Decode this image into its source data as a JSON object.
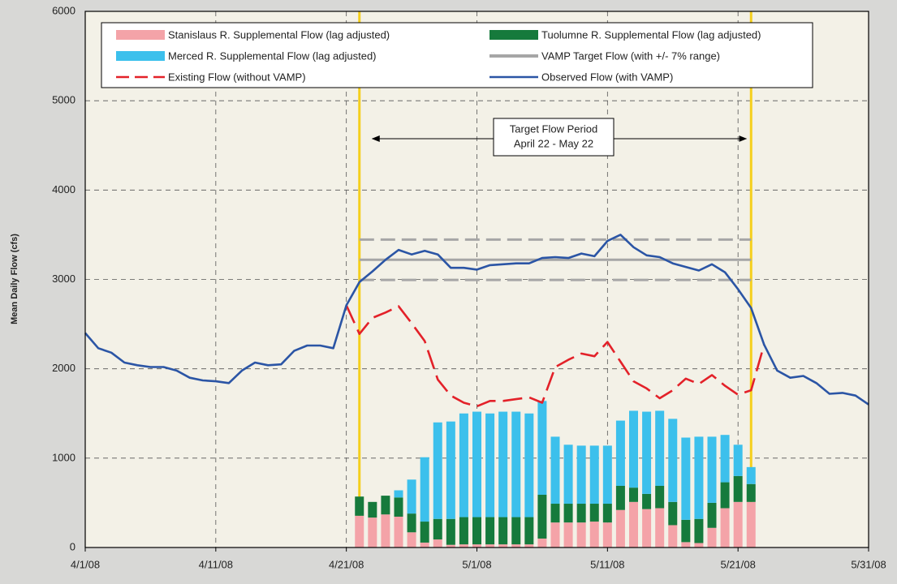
{
  "chart_data": {
    "type": "combo",
    "y_label": "Mean Daily Flow (cfs)",
    "x": [
      "2008-04-01",
      "2008-04-02",
      "2008-04-03",
      "2008-04-04",
      "2008-04-05",
      "2008-04-06",
      "2008-04-07",
      "2008-04-08",
      "2008-04-09",
      "2008-04-10",
      "2008-04-11",
      "2008-04-12",
      "2008-04-13",
      "2008-04-14",
      "2008-04-15",
      "2008-04-16",
      "2008-04-17",
      "2008-04-18",
      "2008-04-19",
      "2008-04-20",
      "2008-04-21",
      "2008-04-22",
      "2008-04-23",
      "2008-04-24",
      "2008-04-25",
      "2008-04-26",
      "2008-04-27",
      "2008-04-28",
      "2008-04-29",
      "2008-04-30",
      "2008-05-01",
      "2008-05-02",
      "2008-05-03",
      "2008-05-04",
      "2008-05-05",
      "2008-05-06",
      "2008-05-07",
      "2008-05-08",
      "2008-05-09",
      "2008-05-10",
      "2008-05-11",
      "2008-05-12",
      "2008-05-13",
      "2008-05-14",
      "2008-05-15",
      "2008-05-16",
      "2008-05-17",
      "2008-05-18",
      "2008-05-19",
      "2008-05-20",
      "2008-05-21",
      "2008-05-22",
      "2008-05-23",
      "2008-05-24",
      "2008-05-25",
      "2008-05-26",
      "2008-05-27",
      "2008-05-28",
      "2008-05-29",
      "2008-05-30",
      "2008-05-31"
    ],
    "xlim": [
      "2008-04-01",
      "2008-05-31"
    ],
    "xticks": [
      {
        "value": "2008-04-01",
        "label": "4/1/08"
      },
      {
        "value": "2008-04-11",
        "label": "4/11/08"
      },
      {
        "value": "2008-04-21",
        "label": "4/21/08"
      },
      {
        "value": "2008-05-01",
        "label": "5/1/08"
      },
      {
        "value": "2008-05-11",
        "label": "5/11/08"
      },
      {
        "value": "2008-05-21",
        "label": "5/21/08"
      },
      {
        "value": "2008-05-31",
        "label": "5/31/08"
      }
    ],
    "ylim": [
      0,
      6000
    ],
    "yticks": [
      0,
      1000,
      2000,
      3000,
      4000,
      5000,
      6000
    ],
    "grid": true,
    "series": [
      {
        "name": "Stanislaus R. Supplemental Flow (lag adjusted)",
        "kind": "bar",
        "color": "#f4a3a8",
        "values": [
          null,
          null,
          null,
          null,
          null,
          null,
          null,
          null,
          null,
          null,
          null,
          null,
          null,
          null,
          null,
          null,
          null,
          null,
          null,
          null,
          null,
          355,
          335,
          370,
          345,
          170,
          55,
          90,
          30,
          35,
          35,
          35,
          35,
          35,
          35,
          100,
          280,
          280,
          280,
          290,
          280,
          420,
          510,
          430,
          440,
          250,
          60,
          50,
          220,
          440,
          510,
          510,
          null,
          null,
          null,
          null,
          null,
          null,
          null,
          null,
          null
        ]
      },
      {
        "name": "Tuolumne R. Supplemental Flow (lag adjusted)",
        "kind": "bar",
        "color": "#167a3c",
        "values": [
          null,
          null,
          null,
          null,
          null,
          null,
          null,
          null,
          null,
          null,
          null,
          null,
          null,
          null,
          null,
          null,
          null,
          null,
          null,
          null,
          null,
          215,
          175,
          210,
          215,
          210,
          235,
          230,
          290,
          305,
          305,
          305,
          305,
          305,
          305,
          490,
          210,
          210,
          210,
          200,
          210,
          270,
          160,
          170,
          250,
          260,
          250,
          270,
          280,
          290,
          290,
          200,
          null,
          null,
          null,
          null,
          null,
          null,
          null,
          null,
          null
        ]
      },
      {
        "name": "Merced R. Supplemental Flow (lag adjusted)",
        "kind": "bar",
        "color": "#3cc0ec",
        "values": [
          null,
          null,
          null,
          null,
          null,
          null,
          null,
          null,
          null,
          null,
          null,
          null,
          null,
          null,
          null,
          null,
          null,
          null,
          null,
          null,
          null,
          0,
          0,
          0,
          80,
          380,
          720,
          1080,
          1090,
          1160,
          1180,
          1160,
          1180,
          1180,
          1160,
          1050,
          750,
          660,
          650,
          650,
          650,
          730,
          860,
          920,
          840,
          930,
          920,
          920,
          740,
          530,
          350,
          190,
          null,
          null,
          null,
          null,
          null,
          null,
          null,
          null,
          null
        ]
      },
      {
        "name": "VAMP Target Flow (with +/- 7% range)",
        "kind": "target",
        "color": "#a6a6a6",
        "range_pct": 7,
        "values": [
          null,
          null,
          null,
          null,
          null,
          null,
          null,
          null,
          null,
          null,
          null,
          null,
          null,
          null,
          null,
          null,
          null,
          null,
          null,
          null,
          null,
          3220,
          3220,
          3220,
          3220,
          3220,
          3220,
          3220,
          3220,
          3220,
          3220,
          3220,
          3220,
          3220,
          3220,
          3220,
          3220,
          3220,
          3220,
          3220,
          3220,
          3220,
          3220,
          3220,
          3220,
          3220,
          3220,
          3220,
          3220,
          3220,
          3220,
          3220,
          null,
          null,
          null,
          null,
          null,
          null,
          null,
          null,
          null
        ]
      },
      {
        "name": "Existing Flow (without VAMP)",
        "kind": "line",
        "dashed": true,
        "color": "#e32129",
        "values": [
          null,
          null,
          null,
          null,
          null,
          null,
          null,
          null,
          null,
          null,
          null,
          null,
          null,
          null,
          null,
          null,
          null,
          null,
          null,
          null,
          2710,
          2390,
          2570,
          2630,
          2700,
          2510,
          2310,
          1880,
          1700,
          1620,
          1580,
          1640,
          1640,
          1660,
          1680,
          1620,
          2020,
          2100,
          2170,
          2140,
          2300,
          2080,
          1860,
          1780,
          1670,
          1760,
          1890,
          1830,
          1930,
          1810,
          1710,
          1760,
          2270,
          null,
          null,
          null,
          null,
          null,
          null,
          null,
          null
        ]
      },
      {
        "name": "Observed Flow (with VAMP)",
        "kind": "line",
        "dashed": false,
        "color": "#2b55a5",
        "values": [
          2400,
          2230,
          2180,
          2070,
          2040,
          2020,
          2020,
          1980,
          1900,
          1870,
          1860,
          1840,
          1980,
          2070,
          2040,
          2050,
          2200,
          2260,
          2260,
          2230,
          2710,
          2970,
          3090,
          3220,
          3330,
          3280,
          3320,
          3280,
          3130,
          3130,
          3110,
          3160,
          3170,
          3180,
          3180,
          3240,
          3250,
          3240,
          3290,
          3260,
          3430,
          3500,
          3360,
          3270,
          3250,
          3180,
          3140,
          3100,
          3170,
          3080,
          2890,
          2680,
          2270,
          1980,
          1900,
          1920,
          1840,
          1720,
          1730,
          1700,
          1600
        ]
      }
    ],
    "target_period": {
      "lines": [
        "Target Flow Period",
        "April 22 - May 22"
      ],
      "start": "2008-04-22",
      "end": "2008-05-22",
      "color": "#f5cf1c"
    }
  }
}
